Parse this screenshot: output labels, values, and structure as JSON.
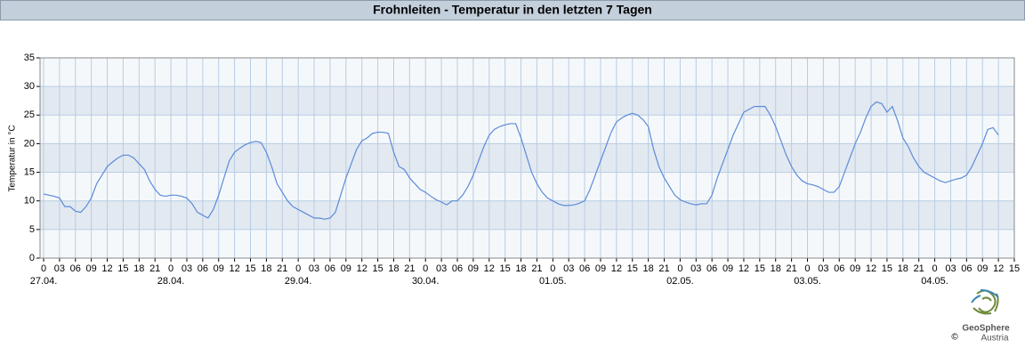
{
  "chart_data": {
    "type": "line",
    "title": "Frohnleiten - Temperatur in den letzten 7 Tagen",
    "ylabel": "Temperatur in °C",
    "logo": {
      "name": "GeoSphere",
      "sub": "Austria",
      "copyright": "©"
    },
    "x": [
      0,
      1,
      2,
      3,
      4,
      5,
      6,
      7,
      8,
      9,
      10,
      11,
      12,
      13,
      14,
      15,
      16,
      17,
      18,
      19,
      20,
      21,
      22,
      23,
      24,
      25,
      26,
      27,
      28,
      29,
      30,
      31,
      32,
      33,
      34,
      35,
      36,
      37,
      38,
      39,
      40,
      41,
      42,
      43,
      44,
      45,
      46,
      47,
      48,
      49,
      50,
      51,
      52,
      53,
      54,
      55,
      56,
      57,
      58,
      59,
      60,
      61,
      62,
      63,
      64,
      65,
      66,
      67,
      68,
      69,
      70,
      71,
      72,
      73,
      74,
      75,
      76,
      77,
      78,
      79,
      80,
      81,
      82,
      83,
      84,
      85,
      86,
      87,
      88,
      89,
      90,
      91,
      92,
      93,
      94,
      95,
      96,
      97,
      98,
      99,
      100,
      101,
      102,
      103,
      104,
      105,
      106,
      107,
      108,
      109,
      110,
      111,
      112,
      113,
      114,
      115,
      116,
      117,
      118,
      119,
      120,
      121,
      122,
      123,
      124,
      125,
      126,
      127,
      128,
      129,
      130,
      131,
      132,
      133,
      134,
      135,
      136,
      137,
      138,
      139,
      140,
      141,
      142,
      143,
      144,
      145,
      146,
      147,
      148,
      149,
      150,
      151,
      152,
      153,
      154,
      155,
      156,
      157,
      158,
      159,
      160,
      161,
      162,
      163,
      164,
      165,
      166,
      167,
      168,
      169,
      170,
      171,
      172,
      173,
      174,
      175,
      176,
      177,
      178,
      179,
      180
    ],
    "series": [
      {
        "name": "Temperatur",
        "color": "#5b8bd9",
        "values": [
          11.2,
          11,
          10.8,
          10.5,
          9,
          9,
          8.2,
          8,
          9,
          10.5,
          13,
          14.5,
          16,
          16.8,
          17.5,
          18,
          18,
          17.5,
          16.5,
          15.5,
          13.5,
          12,
          11,
          10.8,
          11,
          11,
          10.8,
          10.5,
          9.5,
          8,
          7.5,
          7,
          8.5,
          11,
          14,
          17,
          18.5,
          19.2,
          19.8,
          20.2,
          20.4,
          20.2,
          18.5,
          16,
          13,
          11.5,
          10,
          9,
          8.5,
          8,
          7.5,
          7,
          7,
          6.8,
          7,
          8,
          11,
          14,
          16.5,
          19,
          20.5,
          21,
          21.8,
          22,
          22,
          21.8,
          18.5,
          16,
          15.5,
          14,
          13,
          12,
          11.5,
          10.8,
          10.2,
          9.8,
          9.3,
          10,
          10,
          11,
          12.5,
          14.5,
          17,
          19.5,
          21.5,
          22.5,
          23,
          23.3,
          23.5,
          23.5,
          21,
          18,
          15,
          13,
          11.5,
          10.5,
          10,
          9.5,
          9.2,
          9.2,
          9.3,
          9.6,
          10,
          12,
          14.5,
          17,
          19.5,
          22,
          23.8,
          24.5,
          25,
          25.3,
          25,
          24.2,
          23,
          19,
          16,
          14,
          12.5,
          11,
          10.2,
          9.8,
          9.5,
          9.3,
          9.5,
          9.5,
          11,
          14,
          16.5,
          19,
          21.5,
          23.5,
          25.5,
          26,
          26.5,
          26.5,
          26.5,
          25,
          23,
          20.5,
          18,
          16,
          14.5,
          13.5,
          13,
          12.8,
          12.5,
          12,
          11.5,
          11.5,
          12.5,
          15,
          17.5,
          20,
          22,
          24.5,
          26.5,
          27.3,
          27,
          25.5,
          26.5,
          24,
          21,
          19.5,
          17.5,
          16,
          15,
          14.5,
          14,
          13.5,
          13.2,
          13.5,
          13.8,
          14,
          14.5,
          16,
          18,
          20,
          22.5,
          22.8,
          21.5
        ]
      }
    ],
    "xlim": [
      0,
      183
    ],
    "xticks": [
      {
        "value": 0,
        "label": "0"
      },
      {
        "value": 3,
        "label": "03"
      },
      {
        "value": 6,
        "label": "06"
      },
      {
        "value": 9,
        "label": "09"
      },
      {
        "value": 12,
        "label": "12"
      },
      {
        "value": 15,
        "label": "15"
      },
      {
        "value": 18,
        "label": "18"
      },
      {
        "value": 21,
        "label": "21"
      },
      {
        "value": 24,
        "label": "0"
      },
      {
        "value": 27,
        "label": "03"
      },
      {
        "value": 30,
        "label": "06"
      },
      {
        "value": 33,
        "label": "09"
      },
      {
        "value": 36,
        "label": "12"
      },
      {
        "value": 39,
        "label": "15"
      },
      {
        "value": 42,
        "label": "18"
      },
      {
        "value": 45,
        "label": "21"
      },
      {
        "value": 48,
        "label": "0"
      },
      {
        "value": 51,
        "label": "03"
      },
      {
        "value": 54,
        "label": "06"
      },
      {
        "value": 57,
        "label": "09"
      },
      {
        "value": 60,
        "label": "12"
      },
      {
        "value": 63,
        "label": "15"
      },
      {
        "value": 66,
        "label": "18"
      },
      {
        "value": 69,
        "label": "21"
      },
      {
        "value": 72,
        "label": "0"
      },
      {
        "value": 75,
        "label": "03"
      },
      {
        "value": 78,
        "label": "06"
      },
      {
        "value": 81,
        "label": "09"
      },
      {
        "value": 84,
        "label": "12"
      },
      {
        "value": 87,
        "label": "15"
      },
      {
        "value": 90,
        "label": "18"
      },
      {
        "value": 93,
        "label": "21"
      },
      {
        "value": 96,
        "label": "0"
      },
      {
        "value": 99,
        "label": "03"
      },
      {
        "value": 102,
        "label": "06"
      },
      {
        "value": 105,
        "label": "09"
      },
      {
        "value": 108,
        "label": "12"
      },
      {
        "value": 111,
        "label": "15"
      },
      {
        "value": 114,
        "label": "18"
      },
      {
        "value": 117,
        "label": "21"
      },
      {
        "value": 120,
        "label": "0"
      },
      {
        "value": 123,
        "label": "03"
      },
      {
        "value": 126,
        "label": "06"
      },
      {
        "value": 129,
        "label": "09"
      },
      {
        "value": 132,
        "label": "12"
      },
      {
        "value": 135,
        "label": "15"
      },
      {
        "value": 138,
        "label": "18"
      },
      {
        "value": 141,
        "label": "21"
      },
      {
        "value": 144,
        "label": "0"
      },
      {
        "value": 147,
        "label": "03"
      },
      {
        "value": 150,
        "label": "06"
      },
      {
        "value": 153,
        "label": "09"
      },
      {
        "value": 156,
        "label": "12"
      },
      {
        "value": 159,
        "label": "15"
      },
      {
        "value": 162,
        "label": "18"
      },
      {
        "value": 165,
        "label": "21"
      },
      {
        "value": 168,
        "label": "0"
      },
      {
        "value": 171,
        "label": "03"
      },
      {
        "value": 174,
        "label": "06"
      },
      {
        "value": 177,
        "label": "09"
      },
      {
        "value": 180,
        "label": "12"
      },
      {
        "value": 183,
        "label": "15"
      }
    ],
    "day_labels": [
      {
        "value": 0,
        "label": "27.04."
      },
      {
        "value": 24,
        "label": "28.04."
      },
      {
        "value": 48,
        "label": "29.04."
      },
      {
        "value": 72,
        "label": "30.04."
      },
      {
        "value": 96,
        "label": "01.05."
      },
      {
        "value": 120,
        "label": "02.05."
      },
      {
        "value": 144,
        "label": "03.05."
      },
      {
        "value": 168,
        "label": "04.05."
      }
    ],
    "ylim": [
      0,
      35
    ],
    "yticks": [
      0,
      5,
      10,
      15,
      20,
      25,
      30,
      35
    ],
    "grid": true
  }
}
